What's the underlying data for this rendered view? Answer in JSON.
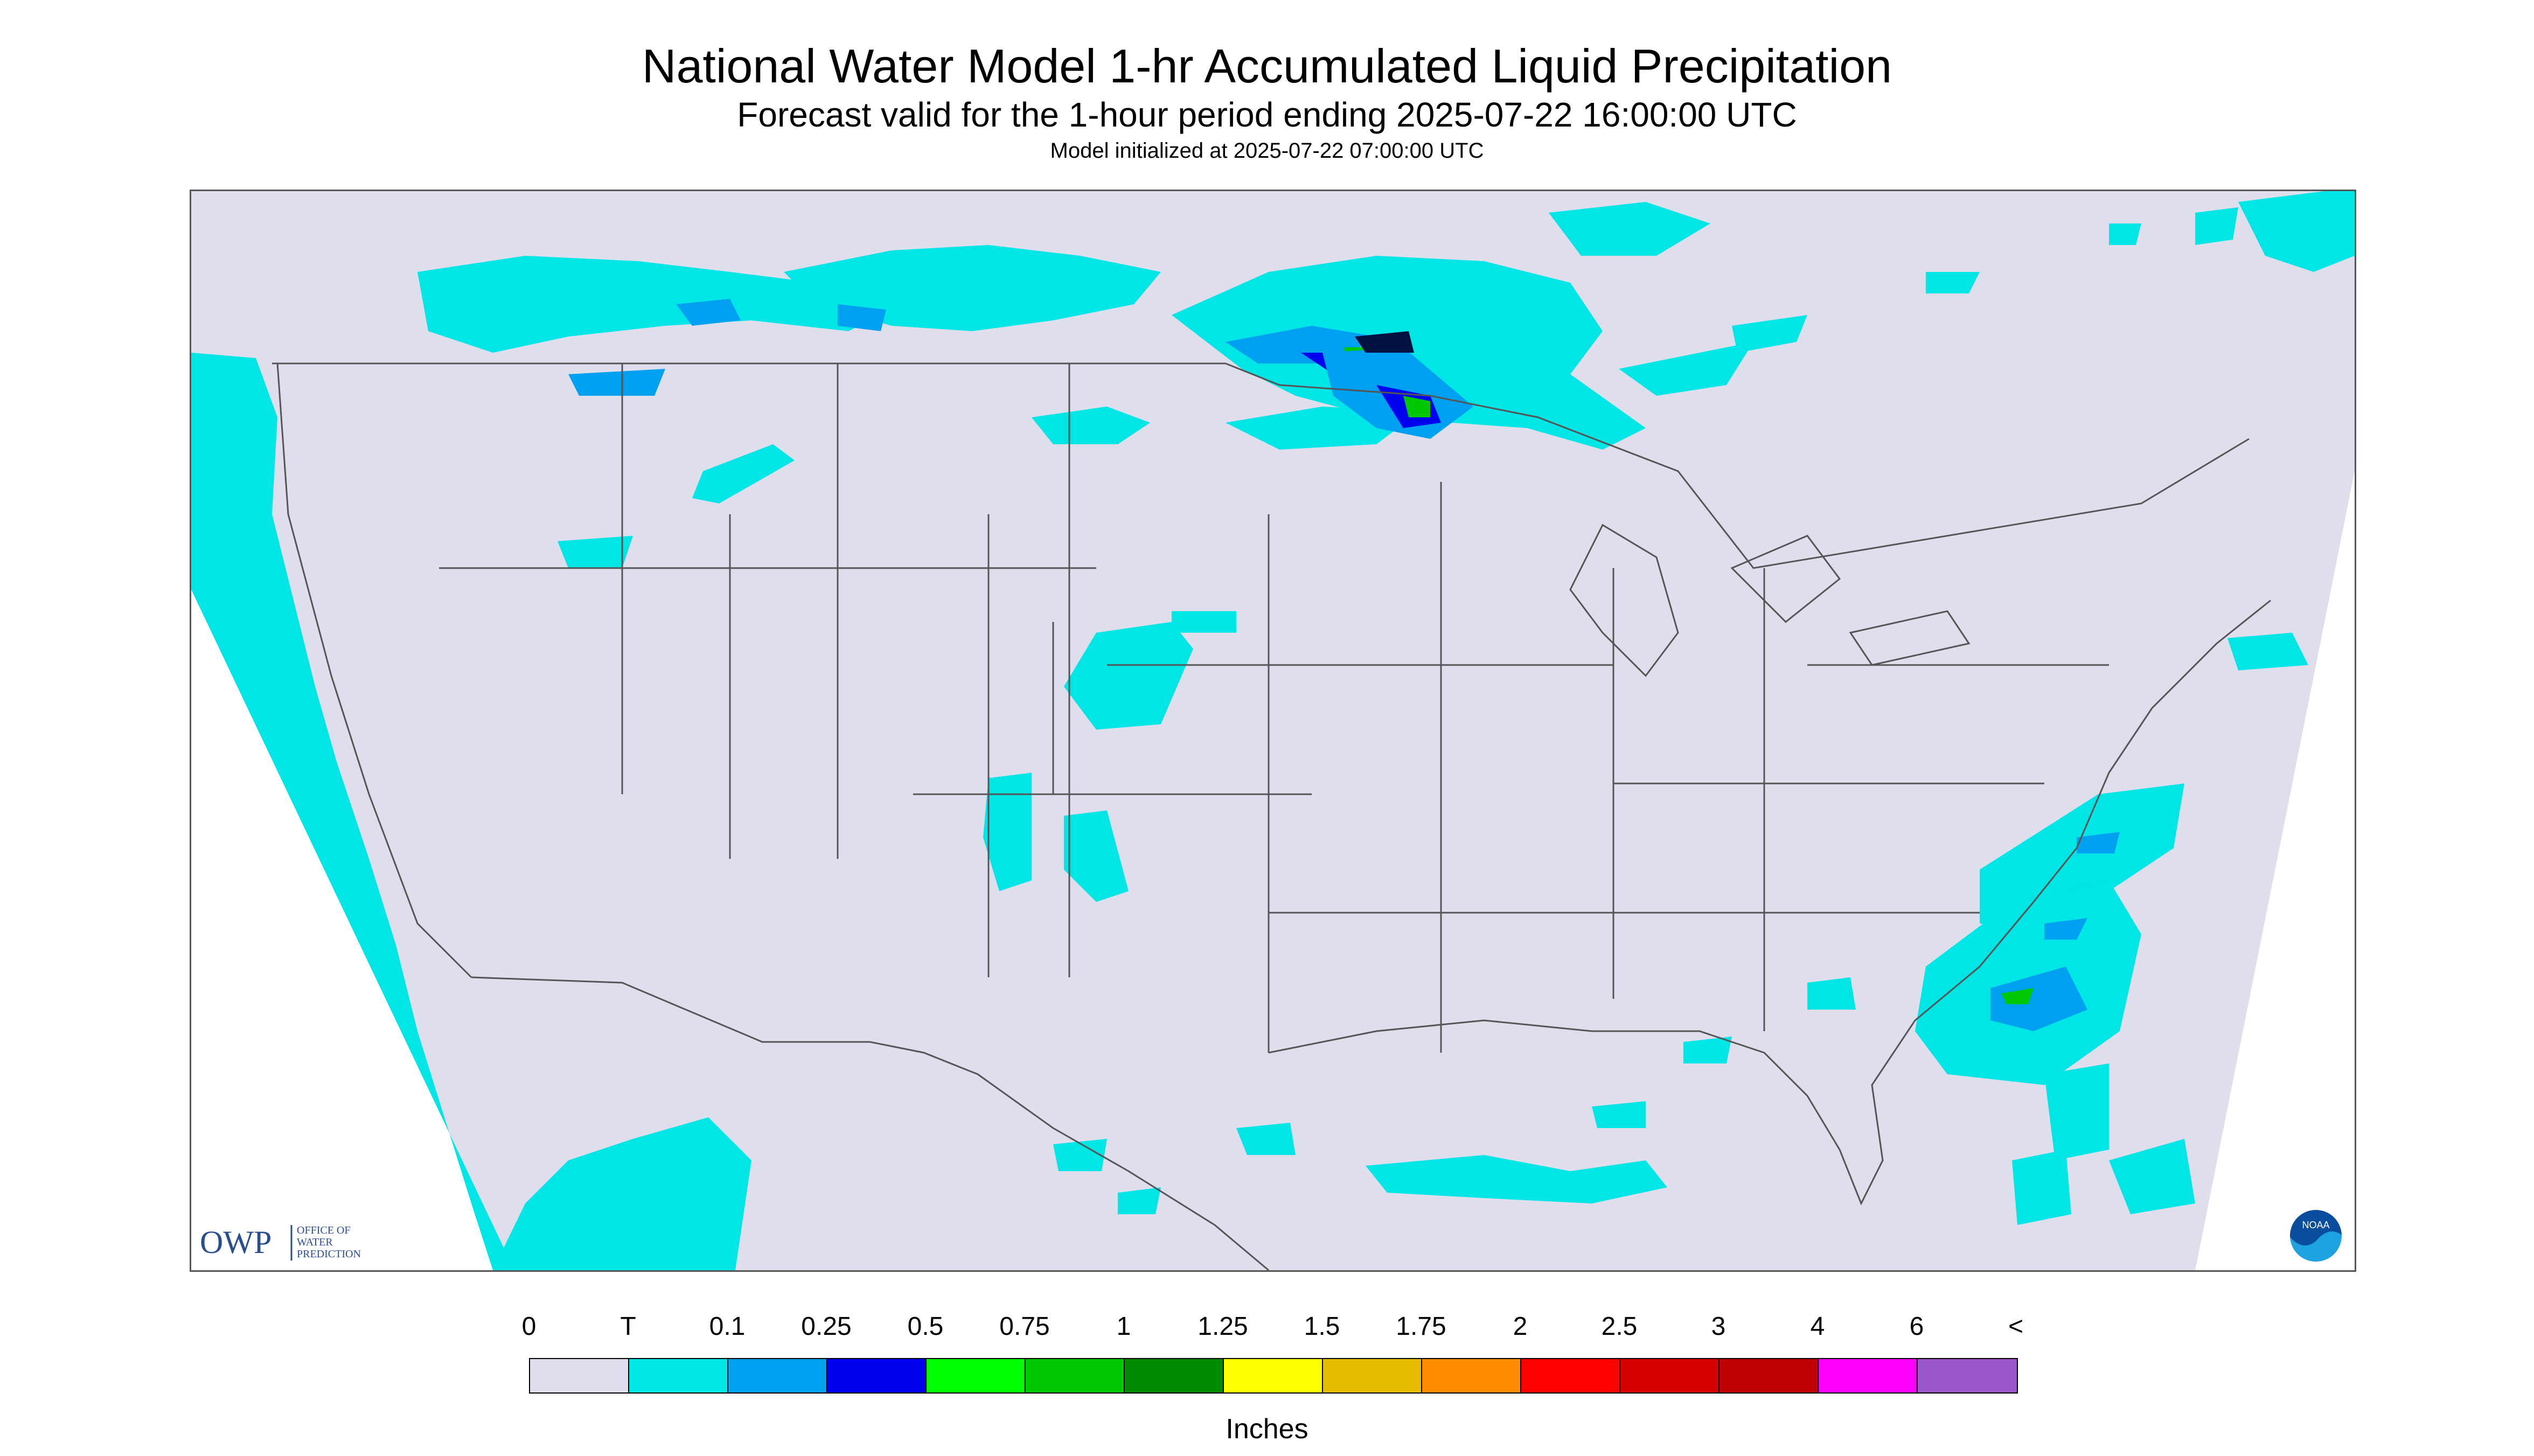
{
  "header": {
    "title": "National Water Model 1-hr Accumulated Liquid Precipitation",
    "subtitle": "Forecast valid for the 1-hour period ending 2025-07-22 16:00:00 UTC",
    "init": "Model initialized at 2025-07-22 07:00:00 UTC"
  },
  "logos": {
    "owp_letters": "OWP",
    "owp_text_1": "OFFICE OF",
    "owp_text_2": "WATER",
    "owp_text_3": "PREDICTION",
    "noaa": "NOAA"
  },
  "legend": {
    "labels": [
      "0",
      "T",
      "0.1",
      "0.25",
      "0.5",
      "0.75",
      "1",
      "1.25",
      "1.5",
      "1.75",
      "2",
      "2.5",
      "3",
      "4",
      "6",
      "<"
    ],
    "colors": [
      "#dedeed",
      "#00e5e5",
      "#00a0f0",
      "#0000f0",
      "#00ff00",
      "#00c800",
      "#008c00",
      "#ffff00",
      "#e6be00",
      "#ff8c00",
      "#ff0000",
      "#d70000",
      "#be0000",
      "#ff00ff",
      "#9955c9"
    ],
    "units": "Inches"
  },
  "colors": {
    "background": "#dedeed",
    "no_data": "#ffffff",
    "trace": "#00e5e5",
    "borders": "#555555"
  }
}
